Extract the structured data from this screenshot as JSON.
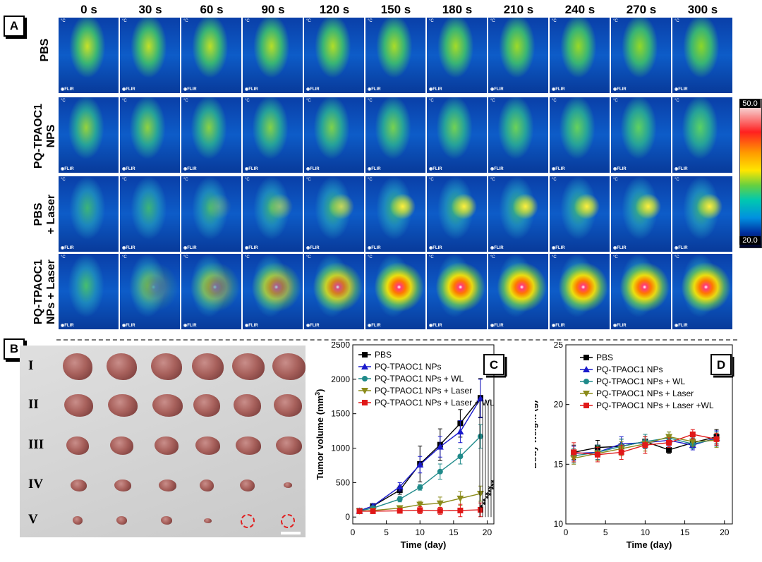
{
  "panel_a": {
    "label": "A",
    "time_labels": [
      "0 s",
      "30 s",
      "60 s",
      "90 s",
      "120 s",
      "150 s",
      "180 s",
      "210 s",
      "240 s",
      "270 s",
      "300 s"
    ],
    "row_labels": [
      "PBS",
      "PQ-TPAOC1\nNPS",
      "PBS\n+ Laser",
      "PQ-TPAOC1\nNPs + Laser"
    ],
    "cell_unit": "°C",
    "cell_brand": "FLIR",
    "colorbar": {
      "max": "50.0",
      "min": "20.0"
    }
  },
  "panel_b": {
    "label": "B",
    "groups": [
      "I",
      "II",
      "III",
      "IV",
      "V"
    ]
  },
  "chart_data": [
    {
      "type": "line",
      "panel": "C",
      "xlabel": "Time (day)",
      "ylabel": "Tumor volume (mm",
      "ylabel_sup": "3",
      "ylabel_close": ")",
      "xlim": [
        0,
        21
      ],
      "ylim": [
        -100,
        2500
      ],
      "x_ticks": [
        "0",
        "5",
        "10",
        "15",
        "20"
      ],
      "y_ticks": [
        "0",
        "500",
        "1000",
        "1500",
        "2000",
        "2500"
      ],
      "x": [
        1,
        3,
        7,
        10,
        13,
        16,
        19
      ],
      "series": [
        {
          "name": "PBS",
          "color": "#000000",
          "marker": "square",
          "values": [
            90,
            160,
            390,
            770,
            1050,
            1360,
            1730
          ],
          "err": [
            20,
            30,
            60,
            260,
            230,
            200,
            280
          ]
        },
        {
          "name": "PQ-TPAOC1 NPs",
          "color": "#1a1acc",
          "marker": "triangle",
          "values": [
            90,
            160,
            440,
            760,
            1020,
            1240,
            1720
          ],
          "err": [
            20,
            30,
            60,
            120,
            150,
            160,
            280
          ]
        },
        {
          "name": "PQ-TPAOC1 NPs + WL",
          "color": "#1f8a8a",
          "marker": "circle",
          "values": [
            90,
            130,
            260,
            430,
            660,
            880,
            1170
          ],
          "err": [
            15,
            20,
            40,
            40,
            110,
            110,
            170
          ]
        },
        {
          "name": "PQ-TPAOC1 NPs + Laser",
          "color": "#8b8b1a",
          "marker": "triangle-down",
          "values": [
            85,
            95,
            130,
            180,
            200,
            270,
            340
          ],
          "err": [
            10,
            15,
            30,
            50,
            90,
            100,
            110
          ]
        },
        {
          "name": "PQ-TPAOC1 NPs + Laser + WL",
          "color": "#e01818",
          "marker": "square",
          "values": [
            85,
            85,
            90,
            100,
            90,
            95,
            105
          ],
          "err": [
            10,
            10,
            30,
            50,
            50,
            90,
            100
          ]
        }
      ],
      "significance": [
        "*",
        "**",
        "**",
        "***",
        "***"
      ]
    },
    {
      "type": "line",
      "panel": "D",
      "xlabel": "Time (day)",
      "ylabel": "Body weight (g)",
      "xlim": [
        0,
        21
      ],
      "ylim": [
        10,
        25
      ],
      "x_ticks": [
        "0",
        "5",
        "10",
        "15",
        "20"
      ],
      "y_ticks": [
        "10",
        "15",
        "20",
        "25"
      ],
      "x": [
        1,
        4,
        7,
        10,
        13,
        16,
        19
      ],
      "series": [
        {
          "name": "PBS",
          "color": "#000000",
          "marker": "square",
          "values": [
            16.0,
            16.4,
            16.5,
            16.9,
            16.2,
            16.8,
            17.3
          ],
          "err": [
            0.6,
            0.6,
            0.6,
            0.6,
            0.3,
            0.4,
            0.6
          ]
        },
        {
          "name": "PQ-TPAOC1 NPs",
          "color": "#1a1acc",
          "marker": "triangle",
          "values": [
            15.9,
            16.0,
            16.7,
            16.8,
            17.0,
            16.6,
            17.2
          ],
          "err": [
            0.6,
            0.6,
            0.6,
            0.5,
            0.5,
            0.4,
            0.6
          ]
        },
        {
          "name": "PQ-TPAOC1 NPs + WL",
          "color": "#1f8a8a",
          "marker": "circle",
          "values": [
            15.7,
            16.0,
            16.5,
            16.9,
            17.2,
            16.7,
            17.1
          ],
          "err": [
            0.6,
            0.6,
            0.6,
            0.6,
            0.5,
            0.4,
            0.6
          ]
        },
        {
          "name": "PQ-TPAOC1 NPs + Laser",
          "color": "#8b8b1a",
          "marker": "triangle-down",
          "values": [
            15.5,
            15.9,
            16.3,
            16.7,
            17.3,
            16.9,
            17.0
          ],
          "err": [
            0.5,
            0.6,
            0.6,
            0.6,
            0.4,
            0.4,
            0.6
          ]
        },
        {
          "name": "PQ-TPAOC1 NPs + Laser +WL",
          "color": "#e01818",
          "marker": "square",
          "values": [
            16.0,
            15.8,
            16.0,
            16.6,
            16.8,
            17.5,
            17.1
          ],
          "err": [
            0.8,
            0.6,
            0.6,
            0.7,
            0.4,
            0.4,
            0.5
          ]
        }
      ]
    }
  ]
}
